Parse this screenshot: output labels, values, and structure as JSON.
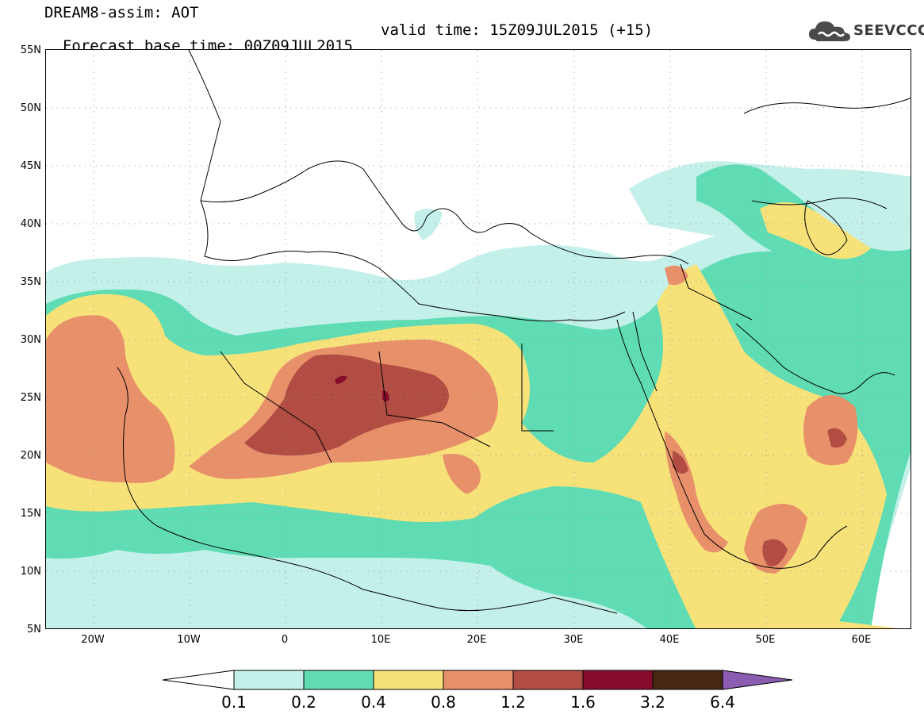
{
  "header": {
    "line1": "DREAM8-assim: AOT",
    "base_time": "Forecast base time: 00Z09JUL2015",
    "valid_time": "valid time: 15Z09JUL2015 (+15)"
  },
  "logo": {
    "text": "SEEVCCC",
    "icon": "cloud-icon"
  },
  "map": {
    "lat_labels": [
      "55N",
      "50N",
      "45N",
      "40N",
      "35N",
      "30N",
      "25N",
      "20N",
      "15N",
      "10N",
      "5N"
    ],
    "lon_labels": [
      "20W",
      "10W",
      "0",
      "10E",
      "20E",
      "30E",
      "40E",
      "50E",
      "60E"
    ],
    "lon_range": [
      -25,
      65
    ],
    "lat_range": [
      5,
      55
    ],
    "grid": "dotted"
  },
  "legend": {
    "levels": [
      "0.1",
      "0.2",
      "0.4",
      "0.8",
      "1.2",
      "1.6",
      "3.2",
      "6.4"
    ],
    "colors": [
      "#ffffff",
      "#c4f0ea",
      "#5fdcb4",
      "#f7e27a",
      "#e8906a",
      "#b14d42",
      "#870c2c",
      "#462814",
      "#8b5cb0"
    ]
  }
}
